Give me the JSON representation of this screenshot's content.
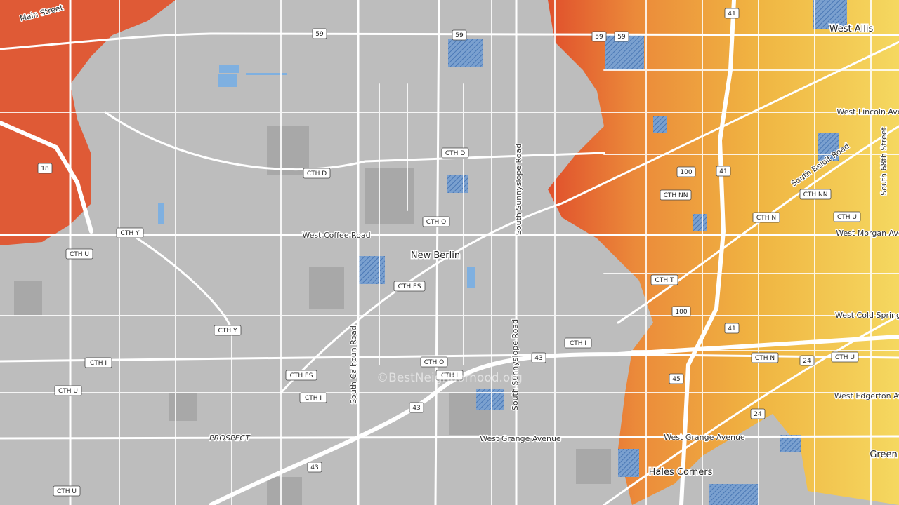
{
  "map": {
    "labels": [
      "Main Street",
      "West Allis",
      "West Lincoln Ave",
      "South Beloit Road",
      "South 68th Street",
      "West Coffee Road",
      "West Morgan Ave",
      "New Berlin",
      "South Sunnyslope Road",
      "South Sunnyslope Road",
      "West Cold Spring",
      "South Calhoun Road",
      "West Edgerton Ave",
      "PROSPECT",
      "West Grange Avenue",
      "West Grange Avenue",
      "Hales Corners",
      "Green"
    ],
    "shields": [
      "59",
      "59",
      "59",
      "59",
      "41",
      "CTH D",
      "CTH D",
      "18",
      "100",
      "41",
      "CTH NN",
      "CTH NN",
      "CTH Y",
      "CTH O",
      "CTH U",
      "CTH N",
      "CTH U",
      "CTH ES",
      "CTH T",
      "100",
      "41",
      "CTH Y",
      "CTH I",
      "CTH I",
      "CTH O",
      "CTH I",
      "43",
      "CTH ES",
      "CTH U",
      "CTH I",
      "CTH N",
      "24",
      "CTH U",
      "45",
      "43",
      "24",
      "43",
      "CTH U"
    ],
    "watermark": "©BestNeighborhood.org"
  }
}
